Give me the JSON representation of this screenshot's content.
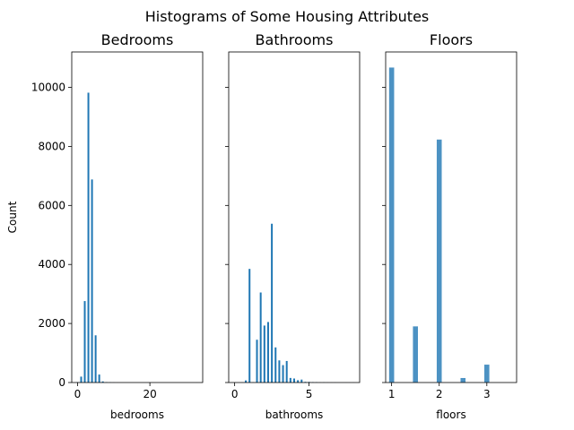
{
  "chart_data": [
    {
      "type": "bar",
      "title": "Bedrooms",
      "xlabel": "bedrooms",
      "ylabel": "Count",
      "xlim": [
        -1.6,
        34.6
      ],
      "ylim": [
        0,
        11200
      ],
      "xticks": [
        0,
        20
      ],
      "yticks": [
        0,
        2000,
        4000,
        6000,
        8000,
        10000
      ],
      "bars": [
        {
          "x": 0,
          "y": 13
        },
        {
          "x": 1,
          "y": 200
        },
        {
          "x": 2,
          "y": 2760
        },
        {
          "x": 3,
          "y": 9820
        },
        {
          "x": 4,
          "y": 6880
        },
        {
          "x": 5,
          "y": 1600
        },
        {
          "x": 6,
          "y": 270
        },
        {
          "x": 7,
          "y": 38
        },
        {
          "x": 8,
          "y": 13
        },
        {
          "x": 9,
          "y": 6
        },
        {
          "x": 10,
          "y": 3
        },
        {
          "x": 11,
          "y": 1
        },
        {
          "x": 33,
          "y": 1
        }
      ]
    },
    {
      "type": "bar",
      "title": "Bathrooms",
      "xlabel": "bathrooms",
      "ylabel": "",
      "xlim": [
        -0.4,
        8.4
      ],
      "ylim": [
        0,
        11200
      ],
      "xticks": [
        0,
        5
      ],
      "yticks": [
        0,
        2000,
        4000,
        6000,
        8000,
        10000
      ],
      "bars": [
        {
          "x": 0.5,
          "y": 4
        },
        {
          "x": 0.75,
          "y": 72
        },
        {
          "x": 1.0,
          "y": 3850
        },
        {
          "x": 1.25,
          "y": 9
        },
        {
          "x": 1.5,
          "y": 1450
        },
        {
          "x": 1.75,
          "y": 3050
        },
        {
          "x": 2.0,
          "y": 1930
        },
        {
          "x": 2.25,
          "y": 2050
        },
        {
          "x": 2.5,
          "y": 5380
        },
        {
          "x": 2.75,
          "y": 1190
        },
        {
          "x": 3.0,
          "y": 750
        },
        {
          "x": 3.25,
          "y": 590
        },
        {
          "x": 3.5,
          "y": 730
        },
        {
          "x": 3.75,
          "y": 155
        },
        {
          "x": 4.0,
          "y": 136
        },
        {
          "x": 4.25,
          "y": 79
        },
        {
          "x": 4.5,
          "y": 100
        },
        {
          "x": 4.75,
          "y": 23
        },
        {
          "x": 5.0,
          "y": 21
        },
        {
          "x": 5.25,
          "y": 13
        },
        {
          "x": 5.5,
          "y": 10
        },
        {
          "x": 5.75,
          "y": 4
        },
        {
          "x": 6.0,
          "y": 6
        },
        {
          "x": 6.25,
          "y": 2
        },
        {
          "x": 6.5,
          "y": 2
        },
        {
          "x": 6.75,
          "y": 2
        },
        {
          "x": 7.5,
          "y": 1
        },
        {
          "x": 7.75,
          "y": 1
        },
        {
          "x": 8.0,
          "y": 2
        }
      ]
    },
    {
      "type": "bar",
      "title": "Floors",
      "xlabel": "floors",
      "ylabel": "",
      "xlim": [
        0.875,
        3.625
      ],
      "ylim": [
        0,
        11200
      ],
      "xticks": [
        1,
        2,
        3
      ],
      "yticks": [
        0,
        2000,
        4000,
        6000,
        8000,
        10000
      ],
      "bars": [
        {
          "x": 1.0,
          "y": 10680
        },
        {
          "x": 1.5,
          "y": 1910
        },
        {
          "x": 2.0,
          "y": 8240
        },
        {
          "x": 2.5,
          "y": 161
        },
        {
          "x": 3.0,
          "y": 613
        },
        {
          "x": 3.5,
          "y": 8
        }
      ]
    }
  ],
  "figure": {
    "title": "Histograms of Some Housing Attributes",
    "bar_color": "#1f77b4",
    "bar_edge_color": "#ffffff"
  }
}
